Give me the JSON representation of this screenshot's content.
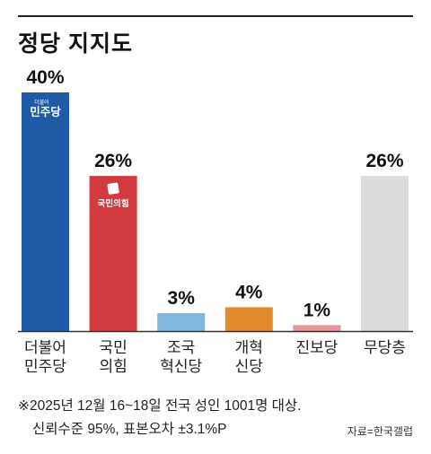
{
  "title": "정당 지지도",
  "chart_data": {
    "type": "bar",
    "categories": [
      [
        "더불어",
        "민주당"
      ],
      [
        "국민",
        "의힘"
      ],
      [
        "조국",
        "혁신당"
      ],
      [
        "개혁",
        "신당"
      ],
      [
        "진보당"
      ],
      [
        "무당층"
      ]
    ],
    "values": [
      40,
      26,
      3,
      4,
      1,
      26
    ],
    "value_labels": [
      "40%",
      "26%",
      "3%",
      "4%",
      "1%",
      "26%"
    ],
    "colors": [
      "#1f5aa6",
      "#d13b40",
      "#7fb8e1",
      "#e38a2e",
      "#e6969b",
      "#dcdcdc"
    ],
    "ylim": [
      0,
      40
    ],
    "logos": [
      {
        "index": 0,
        "small": "더불어",
        "text": "민주당"
      },
      {
        "index": 1,
        "text": "국민의힘"
      }
    ]
  },
  "footnote": {
    "line1": "※2025년 12월 16~18일 전국 성인 1001명 대상.",
    "line2": "신뢰수준 95%, 표본오차 ±3.1%P"
  },
  "source": "자료=한국갤럽"
}
